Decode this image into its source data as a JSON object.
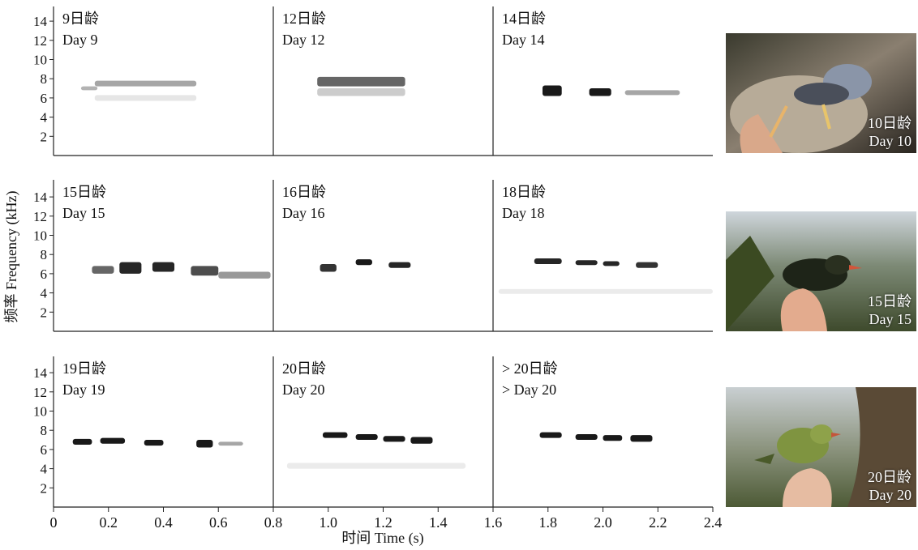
{
  "chart_data": {
    "type": "scatter",
    "xlabel": "时间 Time (s)",
    "ylabel": "频率 Frequency (kHz)",
    "xlim": [
      0,
      2.4
    ],
    "ylim": [
      0,
      15
    ],
    "x_ticks": [
      "0",
      "0.2",
      "0.4",
      "0.6",
      "0.8",
      "1.0",
      "1.2",
      "1.4",
      "1.6",
      "1.8",
      "2.0",
      "2.2",
      "2.4"
    ],
    "x_tick_values": [
      0,
      0.2,
      0.4,
      0.6,
      0.8,
      1.0,
      1.2,
      1.4,
      1.6,
      1.8,
      2.0,
      2.2,
      2.4
    ],
    "y_ticks": [
      "2",
      "4",
      "6",
      "8",
      "10",
      "12",
      "14"
    ],
    "y_tick_values": [
      2,
      4,
      6,
      8,
      10,
      12,
      14
    ],
    "panel_dividers": [
      0.8,
      1.6
    ],
    "rows": [
      {
        "panels": [
          {
            "label_cn": "9日龄",
            "label_en": "Day 9",
            "syllables": [
              {
                "x0": 0.15,
                "x1": 0.52,
                "y0": 7.2,
                "y1": 7.8,
                "intensity": 0.35
              },
              {
                "x0": 0.15,
                "x1": 0.52,
                "y0": 5.7,
                "y1": 6.3,
                "intensity": 0.1
              },
              {
                "x0": 0.1,
                "x1": 0.16,
                "y0": 6.8,
                "y1": 7.2,
                "intensity": 0.3
              }
            ]
          },
          {
            "label_cn": "12日龄",
            "label_en": "Day 12",
            "syllables": [
              {
                "x0": 0.96,
                "x1": 1.28,
                "y0": 7.2,
                "y1": 8.2,
                "intensity": 0.6
              },
              {
                "x0": 0.96,
                "x1": 1.28,
                "y0": 6.2,
                "y1": 7.0,
                "intensity": 0.2
              }
            ]
          },
          {
            "label_cn": "14日龄",
            "label_en": "Day 14",
            "syllables": [
              {
                "x0": 1.78,
                "x1": 1.85,
                "y0": 6.2,
                "y1": 7.3,
                "intensity": 0.9
              },
              {
                "x0": 1.95,
                "x1": 2.03,
                "y0": 6.2,
                "y1": 7.0,
                "intensity": 0.9
              },
              {
                "x0": 2.08,
                "x1": 2.28,
                "y0": 6.3,
                "y1": 6.8,
                "intensity": 0.35
              }
            ]
          }
        ],
        "photo": {
          "label_cn": "10日龄",
          "label_en": "Day 10"
        }
      },
      {
        "panels": [
          {
            "label_cn": "15日龄",
            "label_en": "Day 15",
            "syllables": [
              {
                "x0": 0.14,
                "x1": 0.22,
                "y0": 6.0,
                "y1": 6.8,
                "intensity": 0.6
              },
              {
                "x0": 0.24,
                "x1": 0.32,
                "y0": 6.0,
                "y1": 7.2,
                "intensity": 0.85
              },
              {
                "x0": 0.36,
                "x1": 0.44,
                "y0": 6.2,
                "y1": 7.2,
                "intensity": 0.85
              },
              {
                "x0": 0.5,
                "x1": 0.6,
                "y0": 5.8,
                "y1": 6.8,
                "intensity": 0.7
              },
              {
                "x0": 0.6,
                "x1": 0.79,
                "y0": 5.5,
                "y1": 6.2,
                "intensity": 0.4
              }
            ]
          },
          {
            "label_cn": "16日龄",
            "label_en": "Day 16",
            "syllables": [
              {
                "x0": 0.97,
                "x1": 1.03,
                "y0": 6.2,
                "y1": 7.0,
                "intensity": 0.8
              },
              {
                "x0": 1.1,
                "x1": 1.16,
                "y0": 6.9,
                "y1": 7.5,
                "intensity": 0.9
              },
              {
                "x0": 1.22,
                "x1": 1.3,
                "y0": 6.6,
                "y1": 7.2,
                "intensity": 0.85
              }
            ]
          },
          {
            "label_cn": "18日龄",
            "label_en": "Day 18",
            "syllables": [
              {
                "x0": 1.75,
                "x1": 1.85,
                "y0": 7.0,
                "y1": 7.6,
                "intensity": 0.85
              },
              {
                "x0": 1.9,
                "x1": 1.98,
                "y0": 6.9,
                "y1": 7.4,
                "intensity": 0.85
              },
              {
                "x0": 2.0,
                "x1": 2.06,
                "y0": 6.8,
                "y1": 7.3,
                "intensity": 0.85
              },
              {
                "x0": 2.12,
                "x1": 2.2,
                "y0": 6.6,
                "y1": 7.2,
                "intensity": 0.8
              },
              {
                "x0": 1.62,
                "x1": 2.4,
                "y0": 3.9,
                "y1": 4.4,
                "intensity": 0.08
              }
            ]
          }
        ],
        "photo": {
          "label_cn": "15日龄",
          "label_en": "Day 15"
        }
      },
      {
        "panels": [
          {
            "label_cn": "19日龄",
            "label_en": "Day 19",
            "syllables": [
              {
                "x0": 0.07,
                "x1": 0.14,
                "y0": 6.5,
                "y1": 7.1,
                "intensity": 0.9
              },
              {
                "x0": 0.17,
                "x1": 0.26,
                "y0": 6.6,
                "y1": 7.2,
                "intensity": 0.9
              },
              {
                "x0": 0.33,
                "x1": 0.4,
                "y0": 6.4,
                "y1": 7.0,
                "intensity": 0.9
              },
              {
                "x0": 0.52,
                "x1": 0.58,
                "y0": 6.2,
                "y1": 7.0,
                "intensity": 0.9
              },
              {
                "x0": 0.6,
                "x1": 0.69,
                "y0": 6.4,
                "y1": 6.8,
                "intensity": 0.35
              }
            ]
          },
          {
            "label_cn": "20日龄",
            "label_en": "Day 20",
            "syllables": [
              {
                "x0": 0.98,
                "x1": 1.07,
                "y0": 7.2,
                "y1": 7.8,
                "intensity": 0.9
              },
              {
                "x0": 1.1,
                "x1": 1.18,
                "y0": 7.0,
                "y1": 7.6,
                "intensity": 0.9
              },
              {
                "x0": 1.2,
                "x1": 1.28,
                "y0": 6.8,
                "y1": 7.4,
                "intensity": 0.9
              },
              {
                "x0": 1.3,
                "x1": 1.38,
                "y0": 6.6,
                "y1": 7.3,
                "intensity": 0.9
              },
              {
                "x0": 0.85,
                "x1": 1.5,
                "y0": 4.0,
                "y1": 4.6,
                "intensity": 0.08
              }
            ]
          },
          {
            "label_cn": "> 20日龄",
            "label_en": "> Day 20",
            "syllables": [
              {
                "x0": 1.77,
                "x1": 1.85,
                "y0": 7.2,
                "y1": 7.8,
                "intensity": 0.9
              },
              {
                "x0": 1.9,
                "x1": 1.98,
                "y0": 7.0,
                "y1": 7.6,
                "intensity": 0.9
              },
              {
                "x0": 2.0,
                "x1": 2.07,
                "y0": 6.9,
                "y1": 7.5,
                "intensity": 0.9
              },
              {
                "x0": 2.1,
                "x1": 2.18,
                "y0": 6.8,
                "y1": 7.5,
                "intensity": 0.9
              }
            ]
          }
        ],
        "photo": {
          "label_cn": "20日龄",
          "label_en": "Day 20"
        }
      }
    ]
  },
  "photos": [
    {
      "label_cn": "10日龄",
      "label_en": "Day 10"
    },
    {
      "label_cn": "15日龄",
      "label_en": "Day 15"
    },
    {
      "label_cn": "20日龄",
      "label_en": "Day 20"
    }
  ]
}
